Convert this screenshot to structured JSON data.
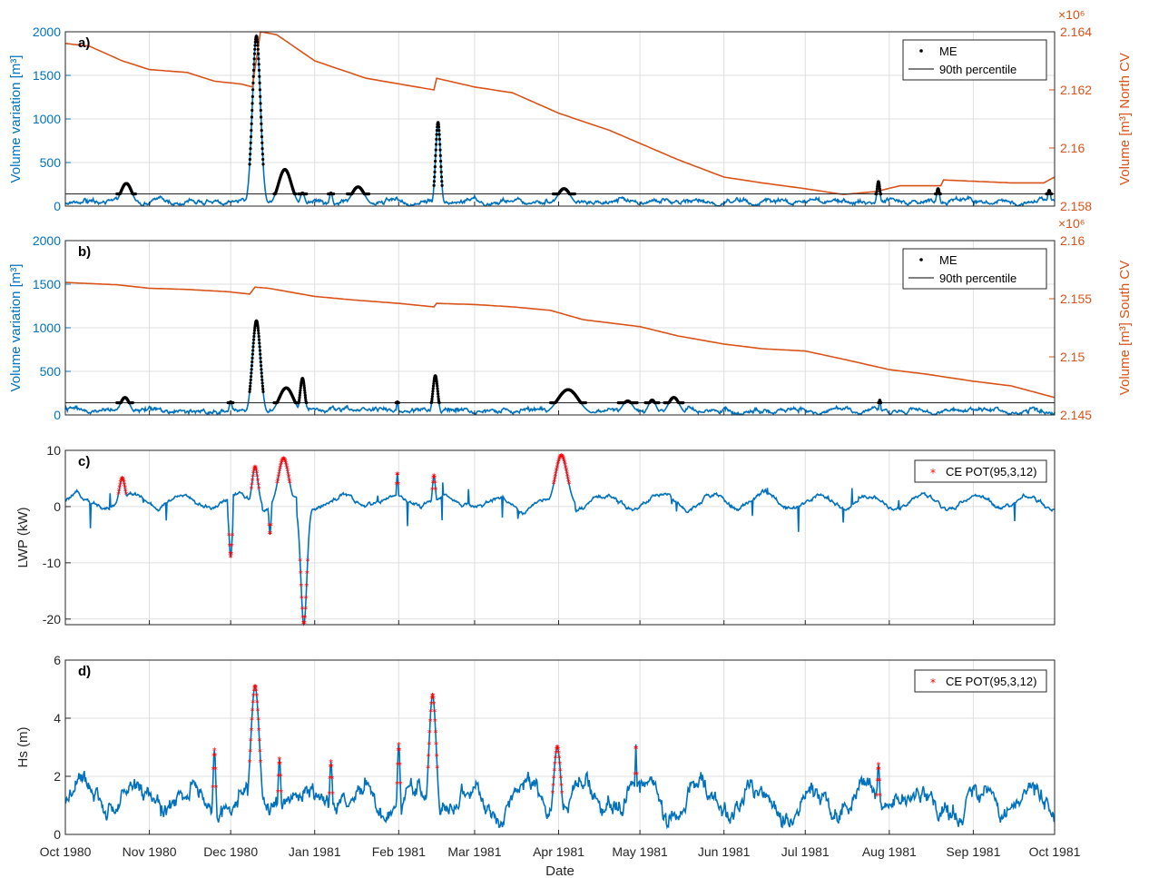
{
  "colors": {
    "blue": "#0072BD",
    "orange": "#D95319",
    "me": "#000000",
    "ce": "#FF0000",
    "axis": "#262626",
    "grid": "#DFDFDF"
  },
  "xaxis": {
    "label": "Date",
    "tick_labels": [
      "Oct 1980",
      "Nov 1980",
      "Dec 1980",
      "Jan 1981",
      "Feb 1981",
      "Mar 1981",
      "Apr 1981",
      "May 1981",
      "Jun 1981",
      "Jul 1981",
      "Aug 1981",
      "Sep 1981",
      "Oct 1981"
    ]
  },
  "chart_data": [
    {
      "panel_label": "a)",
      "type": "line",
      "ylabel_left": "Volume variation [m³]",
      "ylabel_right": "Volume [m³] North CV",
      "ylim_left": [
        0,
        2000
      ],
      "yticks_left": [
        "0",
        "500",
        "1000",
        "1500",
        "2000"
      ],
      "ylim_right": [
        2.158,
        2.164
      ],
      "yticks_right": [
        "2.158",
        "2.16",
        "2.162",
        "2.164"
      ],
      "right_exponent": "×10⁶",
      "threshold_value": 140,
      "legend": [
        "ME",
        "90th percentile"
      ],
      "legend_placement": "top-right",
      "grid": true,
      "events": [
        {
          "start": "1980-10-20",
          "end": "1980-10-27",
          "peak": 260
        },
        {
          "start": "1980-12-08",
          "end": "1980-12-13",
          "peak": 1950
        },
        {
          "start": "1980-12-17",
          "end": "1980-12-25",
          "peak": 420
        },
        {
          "start": "1980-12-26",
          "end": "1980-12-29",
          "peak": 150
        },
        {
          "start": "1981-01-06",
          "end": "1981-01-08",
          "peak": 150
        },
        {
          "start": "1981-01-13",
          "end": "1981-01-21",
          "peak": 220
        },
        {
          "start": "1981-02-14",
          "end": "1981-02-17",
          "peak": 960
        },
        {
          "start": "1981-03-30",
          "end": "1981-04-07",
          "peak": 200
        },
        {
          "start": "1981-07-27",
          "end": "1981-07-29",
          "peak": 280
        },
        {
          "start": "1981-08-18",
          "end": "1981-08-20",
          "peak": 200
        },
        {
          "start": "1981-09-28",
          "end": "1981-09-30",
          "peak": 180
        }
      ],
      "volume_line": [
        [
          "1980-10-01",
          2.1636
        ],
        [
          "1980-10-10",
          2.1635
        ],
        [
          "1980-10-22",
          2.163
        ],
        [
          "1980-11-01",
          2.1627
        ],
        [
          "1980-11-15",
          2.1626
        ],
        [
          "1980-11-25",
          2.1623
        ],
        [
          "1980-12-05",
          2.1622
        ],
        [
          "1980-12-09",
          2.1621
        ],
        [
          "1980-12-12",
          2.164
        ],
        [
          "1980-12-18",
          2.1639
        ],
        [
          "1981-01-01",
          2.163
        ],
        [
          "1981-01-20",
          2.1624
        ],
        [
          "1981-02-14",
          2.162
        ],
        [
          "1981-02-15",
          2.1624
        ],
        [
          "1981-03-01",
          2.1621
        ],
        [
          "1981-03-15",
          2.1619
        ],
        [
          "1981-04-01",
          2.1612
        ],
        [
          "1981-04-20",
          2.1606
        ],
        [
          "1981-04-30",
          2.1602
        ],
        [
          "1981-05-15",
          2.1596
        ],
        [
          "1981-06-01",
          2.159
        ],
        [
          "1981-06-15",
          2.1588
        ],
        [
          "1981-07-01",
          2.1586
        ],
        [
          "1981-07-15",
          2.1584
        ],
        [
          "1981-07-27",
          2.1585
        ],
        [
          "1981-08-05",
          2.1587
        ],
        [
          "1981-08-20",
          2.1587
        ],
        [
          "1981-08-21",
          2.1589
        ],
        [
          "1981-09-15",
          2.1588
        ],
        [
          "1981-09-27",
          2.1588
        ],
        [
          "1981-10-01",
          2.159
        ]
      ]
    },
    {
      "panel_label": "b)",
      "type": "line",
      "ylabel_left": "Volume variation [m³]",
      "ylabel_right": "Volume [m³] South CV",
      "ylim_left": [
        0,
        2000
      ],
      "yticks_left": [
        "0",
        "500",
        "1000",
        "1500",
        "2000"
      ],
      "ylim_right": [
        2.145,
        2.16
      ],
      "yticks_right": [
        "2.145",
        "2.15",
        "2.155",
        "2.16"
      ],
      "right_exponent": "×10⁶",
      "threshold_value": 140,
      "legend": [
        "ME",
        "90th percentile"
      ],
      "legend_placement": "top-right",
      "grid": true,
      "events": [
        {
          "start": "1980-10-20",
          "end": "1980-10-26",
          "peak": 200
        },
        {
          "start": "1980-11-30",
          "end": "1980-12-02",
          "peak": 150
        },
        {
          "start": "1980-12-08",
          "end": "1980-12-13",
          "peak": 1080
        },
        {
          "start": "1980-12-17",
          "end": "1980-12-26",
          "peak": 310
        },
        {
          "start": "1980-12-26",
          "end": "1980-12-29",
          "peak": 420
        },
        {
          "start": "1981-01-31",
          "end": "1981-02-01",
          "peak": 150
        },
        {
          "start": "1981-02-13",
          "end": "1981-02-16",
          "peak": 450
        },
        {
          "start": "1981-03-29",
          "end": "1981-04-11",
          "peak": 290
        },
        {
          "start": "1981-04-23",
          "end": "1981-04-30",
          "peak": 160
        },
        {
          "start": "1981-05-03",
          "end": "1981-05-08",
          "peak": 170
        },
        {
          "start": "1981-05-10",
          "end": "1981-05-17",
          "peak": 200
        },
        {
          "start": "1981-07-28",
          "end": "1981-07-29",
          "peak": 170
        }
      ],
      "volume_line": [
        [
          "1980-10-01",
          2.1564
        ],
        [
          "1980-10-20",
          2.1562
        ],
        [
          "1980-11-01",
          2.1559
        ],
        [
          "1980-11-15",
          2.1558
        ],
        [
          "1980-11-30",
          2.1556
        ],
        [
          "1980-12-08",
          2.1554
        ],
        [
          "1980-12-10",
          2.156
        ],
        [
          "1980-12-15",
          2.1559
        ],
        [
          "1981-01-01",
          2.1552
        ],
        [
          "1981-01-15",
          2.1549
        ],
        [
          "1981-02-01",
          2.1546
        ],
        [
          "1981-02-14",
          2.1543
        ],
        [
          "1981-02-15",
          2.1546
        ],
        [
          "1981-03-01",
          2.1545
        ],
        [
          "1981-03-15",
          2.1543
        ],
        [
          "1981-03-29",
          2.154
        ],
        [
          "1981-04-10",
          2.1532
        ],
        [
          "1981-05-01",
          2.1526
        ],
        [
          "1981-05-15",
          2.1518
        ],
        [
          "1981-06-01",
          2.1511
        ],
        [
          "1981-06-15",
          2.1507
        ],
        [
          "1981-07-01",
          2.1505
        ],
        [
          "1981-07-15",
          2.1498
        ],
        [
          "1981-08-01",
          2.1489
        ],
        [
          "1981-08-15",
          2.1485
        ],
        [
          "1981-09-01",
          2.1479
        ],
        [
          "1981-09-15",
          2.1475
        ],
        [
          "1981-10-01",
          2.1465
        ]
      ]
    },
    {
      "panel_label": "c)",
      "type": "line",
      "ylabel_left": "LWP (kW)",
      "ylim_left": [
        -21,
        10
      ],
      "yticks_left": [
        "-20",
        "-10",
        "0",
        "10"
      ],
      "legend": [
        "CE POT(95,3,12)"
      ],
      "legend_placement": "top-right",
      "grid": true,
      "events": [
        {
          "start": "1980-10-20",
          "end": "1980-10-24",
          "peak": 5.0
        },
        {
          "start": "1980-11-30",
          "end": "1980-12-02",
          "peak": -9.0
        },
        {
          "start": "1980-12-08",
          "end": "1980-12-12",
          "peak": 7.0
        },
        {
          "start": "1980-12-15",
          "end": "1980-12-16",
          "peak": -5.0
        },
        {
          "start": "1980-12-17",
          "end": "1980-12-24",
          "peak": 8.5
        },
        {
          "start": "1980-12-26",
          "end": "1980-12-30",
          "peak": -21.0
        },
        {
          "start": "1981-01-31",
          "end": "1981-02-01",
          "peak": 6.0
        },
        {
          "start": "1981-02-13",
          "end": "1981-02-15",
          "peak": 5.5
        },
        {
          "start": "1981-03-29",
          "end": "1981-04-06",
          "peak": 9.0
        }
      ]
    },
    {
      "panel_label": "d)",
      "type": "line",
      "ylabel_left": "Hs (m)",
      "ylim_left": [
        0,
        6
      ],
      "yticks_left": [
        "0",
        "2",
        "4",
        "6"
      ],
      "legend": [
        "CE POT(95,3,12)"
      ],
      "legend_placement": "top-right",
      "grid": true,
      "events": [
        {
          "start": "1980-11-24",
          "end": "1980-11-26",
          "peak": 2.9
        },
        {
          "start": "1980-12-07",
          "end": "1980-12-13",
          "peak": 5.1
        },
        {
          "start": "1980-12-18",
          "end": "1980-12-20",
          "peak": 2.6
        },
        {
          "start": "1981-01-06",
          "end": "1981-01-08",
          "peak": 2.5
        },
        {
          "start": "1981-01-31",
          "end": "1981-02-02",
          "peak": 3.1
        },
        {
          "start": "1981-02-11",
          "end": "1981-02-16",
          "peak": 4.8
        },
        {
          "start": "1981-03-29",
          "end": "1981-04-03",
          "peak": 3.0
        },
        {
          "start": "1981-04-29",
          "end": "1981-04-30",
          "peak": 3.1
        },
        {
          "start": "1981-07-27",
          "end": "1981-07-29",
          "peak": 2.4
        }
      ]
    }
  ]
}
